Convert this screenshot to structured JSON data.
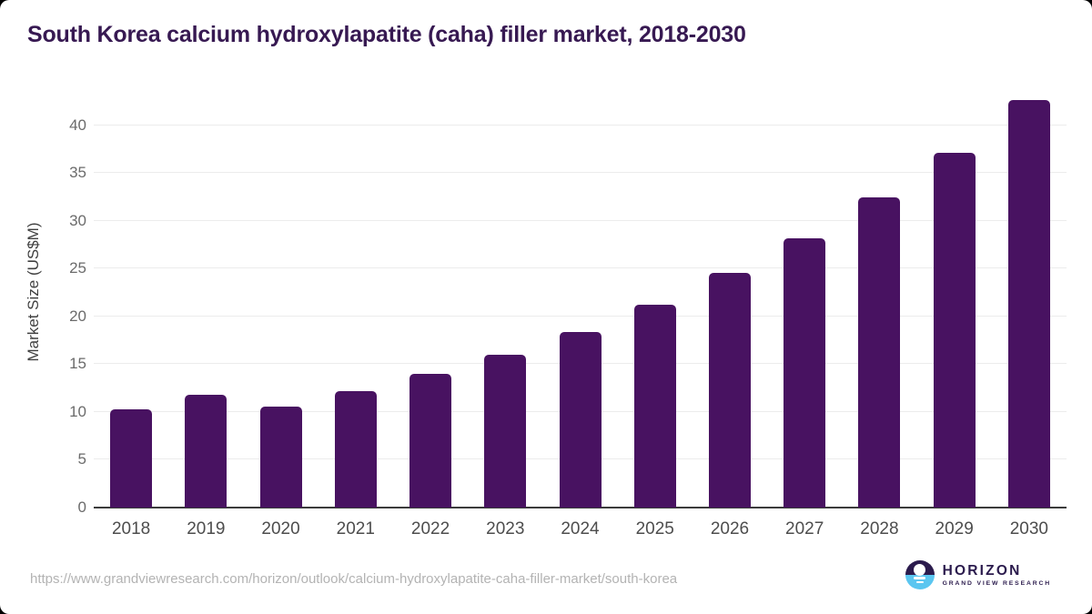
{
  "page": {
    "title": "South Korea calcium hydroxylapatite (caha) filler market, 2018-2030",
    "source_url": "https://www.grandviewresearch.com/horizon/outlook/calcium-hydroxylapatite-caha-filler-market/south-korea"
  },
  "branding": {
    "name": "HORIZON",
    "tagline": "GRAND VIEW RESEARCH",
    "purple": "#2b1b4d",
    "blue": "#5bc6f0"
  },
  "chart_data": {
    "type": "bar",
    "title": "South Korea calcium hydroxylapatite (caha) filler market, 2018-2030",
    "categories": [
      "2018",
      "2019",
      "2020",
      "2021",
      "2022",
      "2023",
      "2024",
      "2025",
      "2026",
      "2027",
      "2028",
      "2029",
      "2030"
    ],
    "values": [
      10.3,
      11.8,
      10.6,
      12.2,
      14.0,
      16.0,
      18.4,
      21.2,
      24.5,
      28.2,
      32.4,
      37.1,
      42.6
    ],
    "xlabel": "",
    "ylabel": "Market Size (US$M)",
    "ylim": [
      0,
      45
    ],
    "yticks": [
      0,
      5,
      10,
      15,
      20,
      25,
      30,
      35,
      40
    ],
    "grid": true,
    "legend_position": "none",
    "bar_color": "#481261",
    "gridline_color": "#ececec",
    "axis_line_color": "#3b3b3b"
  }
}
